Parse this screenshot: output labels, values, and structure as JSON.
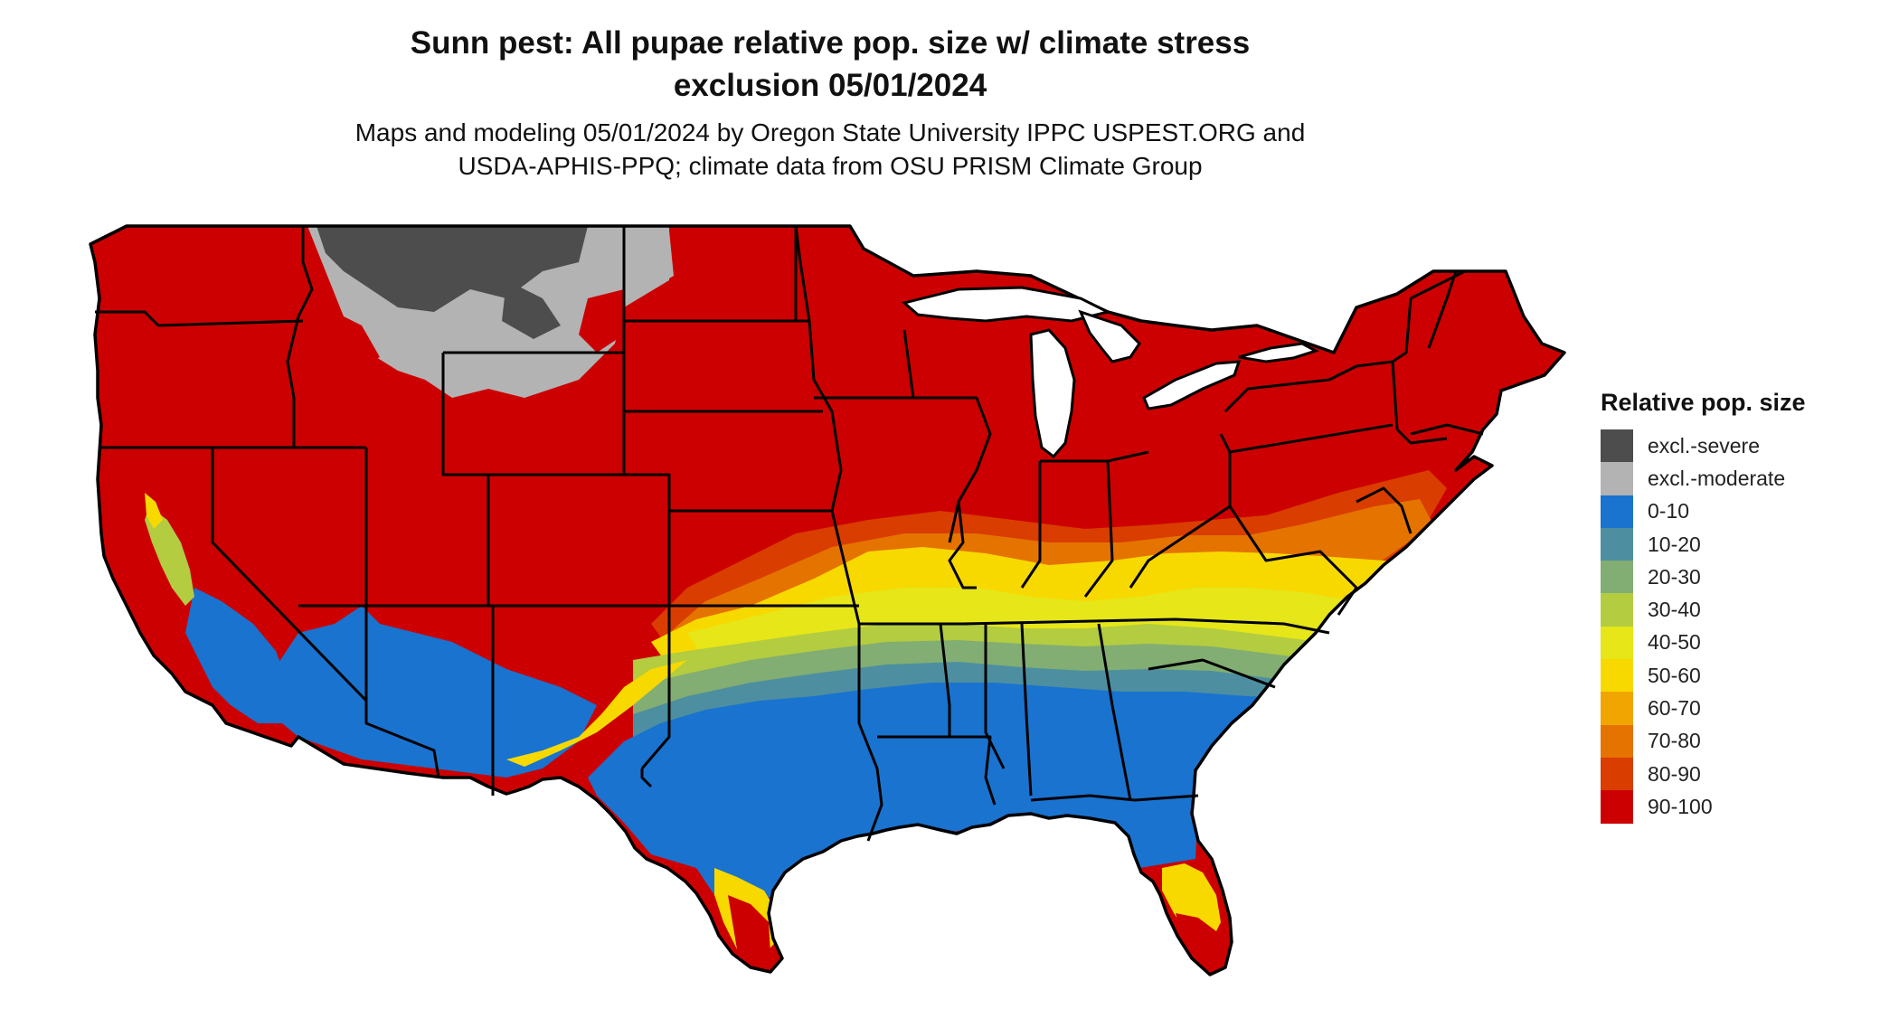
{
  "title_line1": "Sunn pest: All pupae relative pop. size w/ climate stress",
  "title_line2": "exclusion 05/01/2024",
  "subtitle_line1": "Maps and modeling 05/01/2024 by Oregon State University IPPC USPEST.ORG and",
  "subtitle_line2": "USDA-APHIS-PPQ; climate data from OSU PRISM Climate Group",
  "legend": {
    "title": "Relative pop. size",
    "items": [
      {
        "label": "excl.-severe",
        "color": "#4d4d4d"
      },
      {
        "label": "excl.-moderate",
        "color": "#b3b3b3"
      },
      {
        "label": "0-10",
        "color": "#1a73cf"
      },
      {
        "label": "10-20",
        "color": "#4d8fa0"
      },
      {
        "label": "20-30",
        "color": "#82ad73"
      },
      {
        "label": "30-40",
        "color": "#b3cc40"
      },
      {
        "label": "40-50",
        "color": "#e6e619"
      },
      {
        "label": "50-60",
        "color": "#f7d900"
      },
      {
        "label": "60-70",
        "color": "#f0a500"
      },
      {
        "label": "70-80",
        "color": "#e57300"
      },
      {
        "label": "80-90",
        "color": "#d93d00"
      },
      {
        "label": "90-100",
        "color": "#cc0000"
      }
    ]
  }
}
